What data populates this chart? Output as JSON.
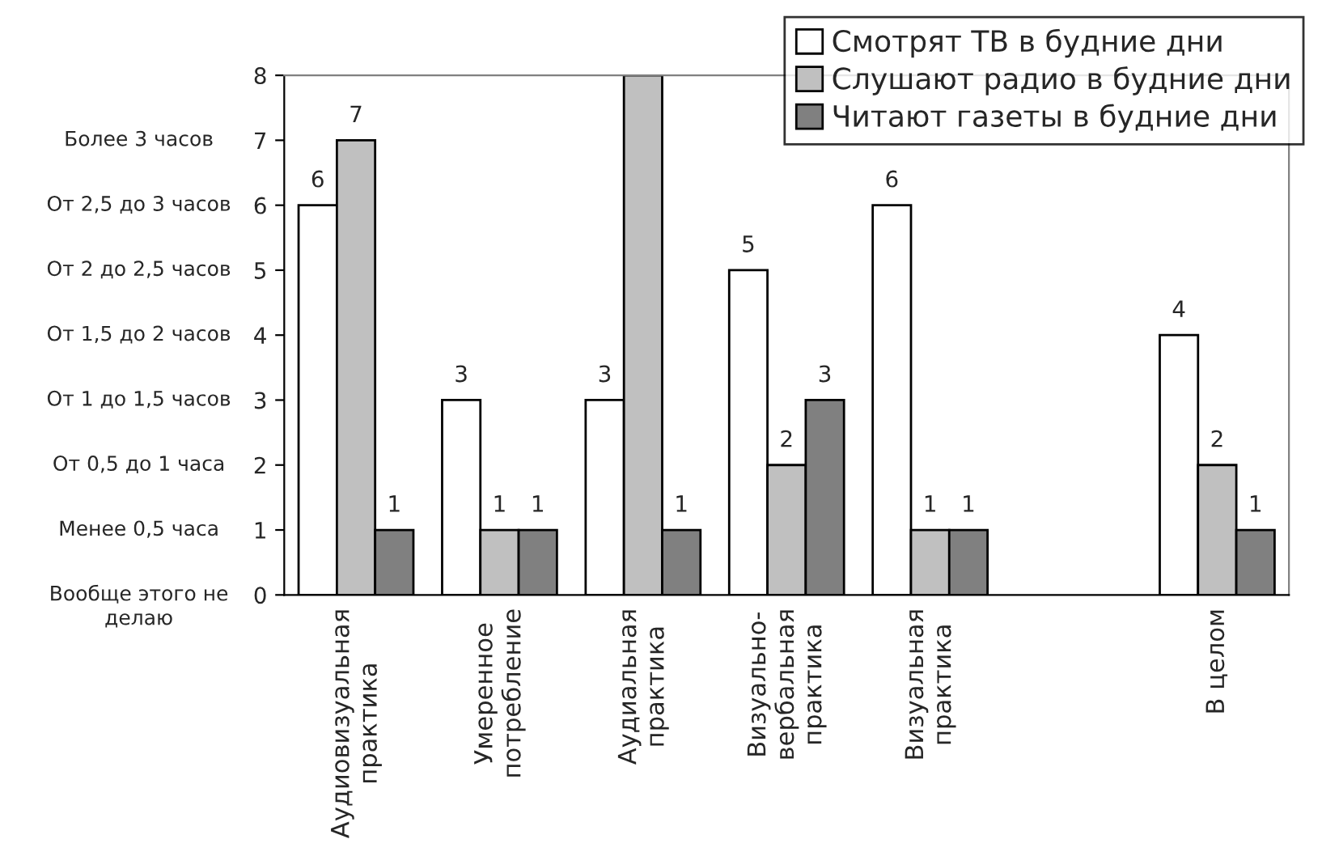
{
  "chart_data": {
    "type": "bar",
    "categories": [
      "Аудиовизуальная\nпрактика",
      "Умеренное\nпотребление",
      "Аудиальная\nпрактика",
      "Визуально-\nвербальная\nпрактика",
      "Визуальная\nпрактика",
      null,
      "В целом"
    ],
    "series": [
      {
        "name": "Смотрят ТВ в будние дни",
        "color": "#ffffff",
        "values": [
          6,
          3,
          3,
          5,
          6,
          null,
          4
        ],
        "value_labels": [
          "6",
          "3",
          "3",
          "5",
          "6",
          null,
          "4"
        ]
      },
      {
        "name": "Слушают радио в будние дни",
        "color": "#c0c0c0",
        "values": [
          7,
          1,
          8,
          2,
          1,
          null,
          2
        ],
        "value_labels": [
          "7",
          "1",
          null,
          "2",
          "1",
          null,
          "2"
        ]
      },
      {
        "name": "Читают газеты в будние дни",
        "color": "#808080",
        "values": [
          1,
          1,
          1,
          3,
          1,
          null,
          1
        ],
        "value_labels": [
          "1",
          "1",
          "1",
          "3",
          "1",
          null,
          "1"
        ]
      }
    ],
    "ylim": [
      0,
      8
    ],
    "yticks": [
      0,
      1,
      2,
      3,
      4,
      5,
      6,
      7,
      8
    ],
    "annotations": [
      "Более 3 часов",
      "От 2,5 до 3 часов",
      "От 2 до 2,5 часов",
      "От 1,5 до 2 часов",
      "От 1 до 1,5 часов",
      "От 0,5 до 1 часа",
      "Менее 0,5 часа",
      "Вообще этого не\nделаю"
    ],
    "grid": false,
    "legend": "top right"
  }
}
